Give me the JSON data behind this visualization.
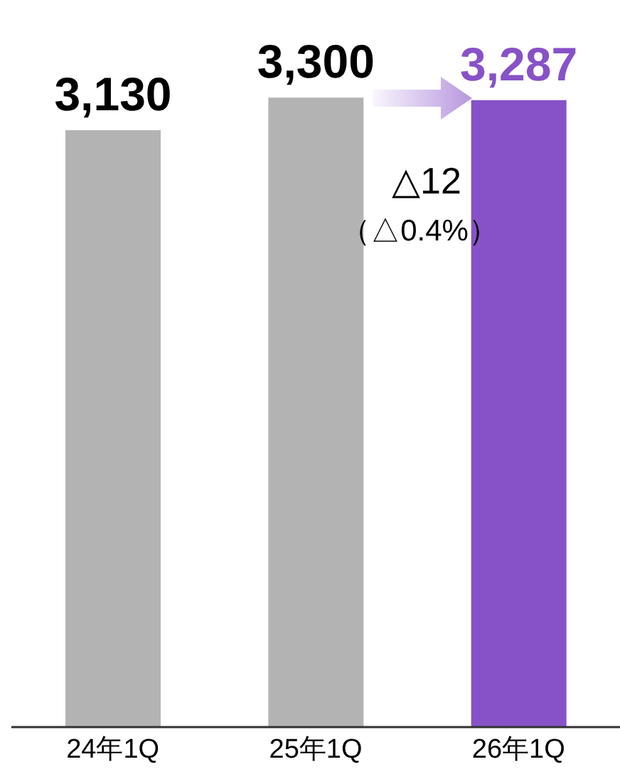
{
  "chart_data": {
    "type": "bar",
    "categories": [
      "24年1Q",
      "25年1Q",
      "26年1Q"
    ],
    "values": [
      3130,
      3300,
      3287
    ],
    "colors": [
      "#b3b3b3",
      "#b3b3b3",
      "#8752c8"
    ],
    "value_labels": [
      "3,130",
      "3,300",
      "3,287"
    ],
    "annotations": [
      "△12",
      "（△0.4%）"
    ]
  }
}
